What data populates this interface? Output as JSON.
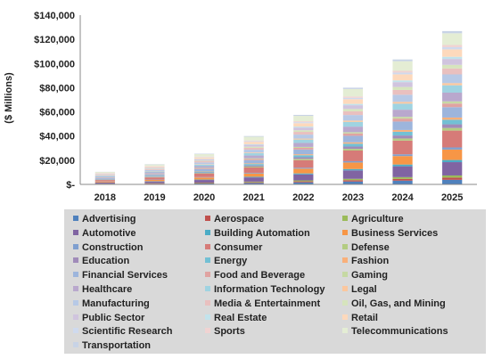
{
  "chart_data": {
    "type": "bar",
    "stacked": true,
    "title": "",
    "xlabel": "",
    "ylabel": "($ Millions)",
    "ylim": [
      0,
      140000
    ],
    "yticks": [
      0,
      20000,
      40000,
      60000,
      80000,
      100000,
      120000,
      140000
    ],
    "ytick_labels": [
      "$-",
      "$20,000",
      "$40,000",
      "$60,000",
      "$80,000",
      "$100,000",
      "$120,000",
      "$140,000"
    ],
    "grid": false,
    "legend_position": "bottom",
    "categories": [
      "2018",
      "2019",
      "2020",
      "2021",
      "2022",
      "2023",
      "2024",
      "2025"
    ],
    "series": [
      {
        "name": "Advertising",
        "color": "#4f81bd",
        "values": [
          300,
          500,
          750,
          1200,
          1700,
          2400,
          3100,
          3800
        ]
      },
      {
        "name": "Aerospace",
        "color": "#c0504d",
        "values": [
          150,
          250,
          350,
          550,
          800,
          1100,
          1450,
          1800
        ]
      },
      {
        "name": "Agriculture",
        "color": "#9bbb59",
        "values": [
          150,
          250,
          350,
          550,
          800,
          1100,
          1450,
          1800
        ]
      },
      {
        "name": "Automotive",
        "color": "#8064a2",
        "values": [
          900,
          1400,
          2200,
          3500,
          5000,
          7000,
          9000,
          11000
        ]
      },
      {
        "name": "Building Automation",
        "color": "#4bacc6",
        "values": [
          150,
          250,
          350,
          550,
          800,
          1100,
          1450,
          1800
        ]
      },
      {
        "name": "Business Services",
        "color": "#f79646",
        "values": [
          700,
          1100,
          1700,
          2700,
          3900,
          5400,
          7000,
          8600
        ]
      },
      {
        "name": "Construction",
        "color": "#7f9fcf",
        "values": [
          150,
          250,
          350,
          550,
          800,
          1100,
          1450,
          1800
        ]
      },
      {
        "name": "Consumer",
        "color": "#d67b78",
        "values": [
          1100,
          1800,
          2800,
          4400,
          6300,
          8800,
          11300,
          13900
        ]
      },
      {
        "name": "Defense",
        "color": "#b3cc82",
        "values": [
          200,
          300,
          450,
          700,
          1000,
          1400,
          1800,
          2200
        ]
      },
      {
        "name": "Education",
        "color": "#a08bb9",
        "values": [
          250,
          400,
          600,
          950,
          1350,
          1900,
          2450,
          3000
        ]
      },
      {
        "name": "Energy",
        "color": "#72c0d4",
        "values": [
          300,
          500,
          750,
          1200,
          1700,
          2400,
          3100,
          3800
        ]
      },
      {
        "name": "Fashion",
        "color": "#f9b07a",
        "values": [
          150,
          250,
          350,
          550,
          800,
          1100,
          1450,
          1800
        ]
      },
      {
        "name": "Financial Services",
        "color": "#9db5dc",
        "values": [
          700,
          1100,
          1700,
          2700,
          3900,
          5400,
          7000,
          8600
        ]
      },
      {
        "name": "Food and Beverage",
        "color": "#e0a3a1",
        "values": [
          250,
          400,
          600,
          950,
          1350,
          1900,
          2450,
          3000
        ]
      },
      {
        "name": "Gaming",
        "color": "#c6d9a3",
        "values": [
          150,
          250,
          350,
          550,
          800,
          1100,
          1450,
          1800
        ]
      },
      {
        "name": "Healthcare",
        "color": "#b9a8cd",
        "values": [
          600,
          950,
          1450,
          2300,
          3300,
          4600,
          5900,
          7200
        ]
      },
      {
        "name": "Information Technology",
        "color": "#9fd3e1",
        "values": [
          500,
          800,
          1250,
          1950,
          2800,
          3900,
          5000,
          6100
        ]
      },
      {
        "name": "Legal",
        "color": "#fbc79e",
        "values": [
          150,
          250,
          350,
          550,
          800,
          1100,
          1450,
          1800
        ]
      },
      {
        "name": "Manufacturing",
        "color": "#b7c9e6",
        "values": [
          600,
          950,
          1450,
          2300,
          3300,
          4600,
          5900,
          7200
        ]
      },
      {
        "name": "Media & Entertainment",
        "color": "#e9c0bf",
        "values": [
          400,
          650,
          1000,
          1550,
          2250,
          3100,
          4000,
          4900
        ]
      },
      {
        "name": "Oil, Gas, and Mining",
        "color": "#d6e4bd",
        "values": [
          250,
          400,
          600,
          950,
          1350,
          1900,
          2450,
          3000
        ]
      },
      {
        "name": "Public Sector",
        "color": "#d0c4de",
        "values": [
          400,
          650,
          1000,
          1550,
          2250,
          3100,
          4000,
          4900
        ]
      },
      {
        "name": "Real Estate",
        "color": "#c2e3ec",
        "values": [
          150,
          250,
          350,
          550,
          800,
          1100,
          1450,
          1800
        ]
      },
      {
        "name": "Retail",
        "color": "#fdd9bc",
        "values": [
          500,
          800,
          1250,
          1950,
          2800,
          3900,
          5000,
          6100
        ]
      },
      {
        "name": "Scientific Research",
        "color": "#cfdaee",
        "values": [
          150,
          250,
          350,
          550,
          800,
          1100,
          1450,
          1800
        ]
      },
      {
        "name": "Sports",
        "color": "#f0d3d2",
        "values": [
          150,
          250,
          350,
          550,
          800,
          1100,
          1450,
          1800
        ]
      },
      {
        "name": "Telecommunications",
        "color": "#e4edd4",
        "values": [
          800,
          1300,
          2000,
          3100,
          4450,
          6200,
          7950,
          9700
        ]
      },
      {
        "name": "Transportation",
        "color": "#c8d3e6",
        "values": [
          150,
          250,
          350,
          550,
          800,
          1100,
          1450,
          1800
        ]
      }
    ]
  }
}
